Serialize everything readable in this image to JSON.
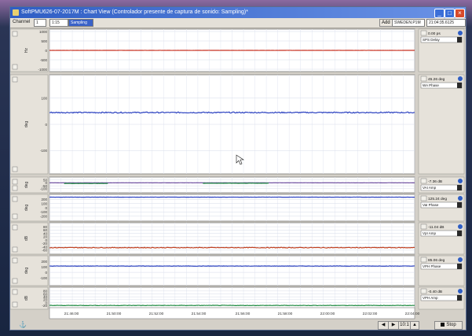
{
  "window": {
    "title": "SoftPMU626-07-2017M : Chart View (Controlador presente de captura de sonido: Sampling)*",
    "controls": {
      "minimize": "_",
      "maximize": "□",
      "close": "×"
    }
  },
  "toolbar": {
    "channel_label": "Channel",
    "channel_value": "1",
    "zoom_value": "1:15",
    "mode_value": "Sampling",
    "add_label": "Add",
    "device_value": "SWEDEN.P1M",
    "time_value": "21:04:35.6125"
  },
  "panels": [
    {
      "id": "p1",
      "ylabel": "Hz",
      "yticks": [
        "1000",
        "500",
        "0",
        "-500",
        "-1000"
      ],
      "yrange": [
        -1000,
        1000
      ],
      "readout": "0.00 ps",
      "select": "SPS Delay",
      "series": [
        {
          "color": "#c83020",
          "level": 0,
          "noise": 5,
          "from": 0,
          "to": 1
        }
      ]
    },
    {
      "id": "p2",
      "ylabel": "deg",
      "yticks": [
        "100",
        "0",
        "-100"
      ],
      "yrange": [
        -180,
        180
      ],
      "readout": "45.26 deg",
      "select": "WA Phase",
      "series": [
        {
          "color": "#2a40c0",
          "level": 45,
          "noise": 4,
          "from": 0,
          "to": 1
        }
      ]
    },
    {
      "id": "p3",
      "ylabel": "deg",
      "yticks": [
        "50",
        "0",
        "-50",
        "-100"
      ],
      "yrange": [
        -130,
        60
      ],
      "readout": "-7.36 dB",
      "select": "VAI Amp",
      "series": [
        {
          "color": "#7050a0",
          "level": 2,
          "noise": 3,
          "from": 0,
          "to": 1
        },
        {
          "color": "#1e8a40",
          "level": -10,
          "noise": 4,
          "from": 0.04,
          "to": 0.16
        },
        {
          "color": "#1e8a40",
          "level": -6,
          "noise": 4,
          "from": 0.42,
          "to": 0.6
        }
      ]
    },
    {
      "id": "p4",
      "ylabel": "deg",
      "yticks": [
        "200",
        "100",
        "0",
        "-100",
        "-200"
      ],
      "yrange": [
        -260,
        260
      ],
      "readout": "125.24 deg",
      "select": "VaI Phase",
      "series": [
        {
          "color": "#2a40c0",
          "level": 250,
          "noise": 4,
          "from": 0,
          "to": 1
        }
      ]
    },
    {
      "id": "p5",
      "ylabel": "dB",
      "yticks": [
        "80",
        "60",
        "40",
        "20",
        "0",
        "-20",
        "-40",
        "-60"
      ],
      "yrange": [
        -70,
        90
      ],
      "readout": "-11.04 dB",
      "select": "VpI Amp",
      "series": [
        {
          "color": "#c04020",
          "level": -45,
          "noise": 4,
          "from": 0,
          "to": 1
        }
      ]
    },
    {
      "id": "p6",
      "ylabel": "deg",
      "yticks": [
        "200",
        "100",
        "0",
        "-100"
      ],
      "yrange": [
        -200,
        260
      ],
      "readout": "85.06 deg",
      "select": "VPH Phase",
      "series": [
        {
          "color": "#2a40c0",
          "level": 115,
          "noise": 6,
          "from": 0,
          "to": 1
        }
      ]
    },
    {
      "id": "p7",
      "ylabel": "dB",
      "yticks": [
        "80",
        "60",
        "40",
        "20",
        "0",
        "-20"
      ],
      "yrange": [
        -30,
        90
      ],
      "readout": "-0.40 dB",
      "select": "VPH Amp",
      "series": [
        {
          "color": "#1e8a40",
          "level": -20,
          "noise": 3,
          "from": 0,
          "to": 1
        }
      ]
    }
  ],
  "time_axis": [
    "21:46:00",
    "21:50:00",
    "21:52:00",
    "21:54:00",
    "21:56:00",
    "21:58:00",
    "22:00:00",
    "22:02:00",
    "22:04:00"
  ],
  "status": {
    "zoom_ratio": "10:1",
    "stop_label": "Stop",
    "pin_icon": "pin-icon"
  }
}
